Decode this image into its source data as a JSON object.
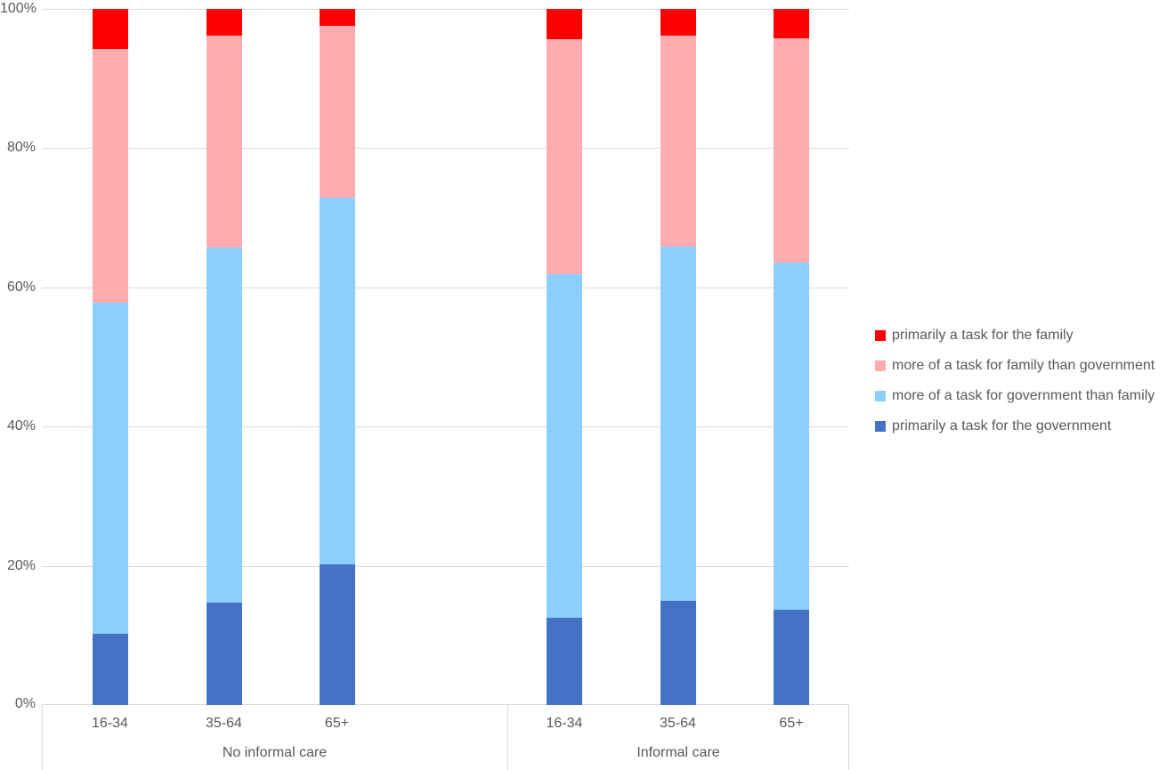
{
  "chart_data": {
    "type": "bar",
    "variant": "100% stacked column",
    "title": "",
    "y_axis": {
      "min": 0,
      "max": 100,
      "tick_step": 20,
      "ticks": [
        0,
        20,
        40,
        60,
        80,
        100
      ],
      "tick_labels": [
        "0%",
        "20%",
        "40%",
        "60%",
        "80%",
        "100%"
      ]
    },
    "x_axis": {
      "groups": [
        {
          "label": "No informal care",
          "categories": [
            "16-34",
            "35-64",
            "65+"
          ]
        },
        {
          "label": "Informal care",
          "categories": [
            "16-34",
            "35-64",
            "65+"
          ]
        }
      ]
    },
    "categories": [
      "16-34",
      "35-64",
      "65+",
      "16-34",
      "35-64",
      "65+"
    ],
    "series_bottom_to_top": [
      {
        "name": "primarily a task for the government",
        "color": "#4472C4",
        "values": [
          10.3,
          14.7,
          20.2,
          12.5,
          15.0,
          13.7
        ]
      },
      {
        "name": "more of a task for government than family",
        "color": "#8CCEFC",
        "values": [
          47.5,
          51.0,
          52.7,
          49.4,
          50.9,
          49.9
        ]
      },
      {
        "name": "more of a task for family than government",
        "color": "#FFACB0",
        "values": [
          36.4,
          30.5,
          24.7,
          33.8,
          30.3,
          32.2
        ]
      },
      {
        "name": "primarily a task for the family",
        "color": "#FF0000",
        "values": [
          5.8,
          3.8,
          2.4,
          4.3,
          3.8,
          4.2
        ]
      }
    ],
    "legend": {
      "position": "right",
      "entries_top_to_bottom": [
        "primarily a task for the family",
        "more of a task for family than government",
        "more of a task for government than family",
        "primarily a task for the government"
      ]
    },
    "grid": true,
    "gridline_color": "#D9D9D9",
    "axis_text_color": "#595959",
    "background": "#FFFFFF"
  }
}
